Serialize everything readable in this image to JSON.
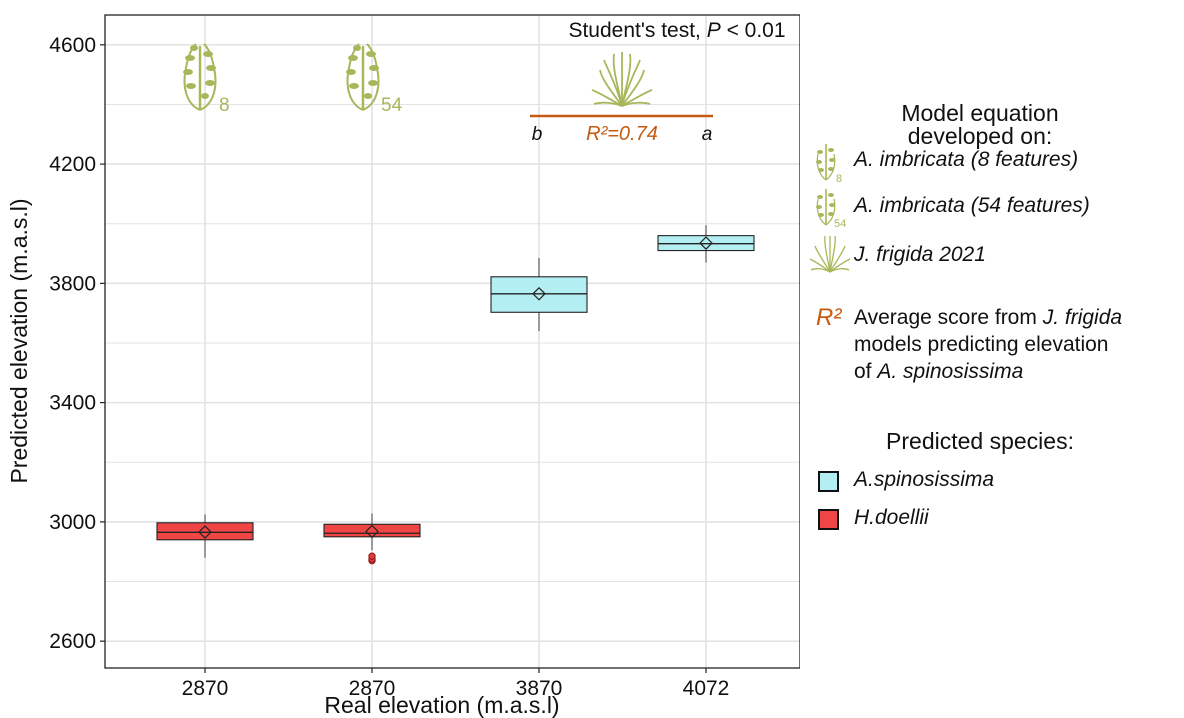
{
  "chart_data": {
    "type": "boxplot",
    "title": "",
    "annotation": {
      "test_prefix": "Student's test, ",
      "test_p": "P",
      "test_suffix": " < 0.01",
      "r2_label": "R²=0.74",
      "letter_left": "b",
      "letter_right": "a",
      "icon_label_1": "8",
      "icon_label_2": "54"
    },
    "xlabel": "Real elevation (m.a.s.l)",
    "ylabel": "Predicted elevation (m.a.s.l)",
    "categories": [
      "2870",
      "2870",
      "3870",
      "4072"
    ],
    "yticks": [
      2600,
      3000,
      3400,
      3800,
      4200,
      4600
    ],
    "ylim": [
      2510,
      4700
    ],
    "grid": true,
    "boxes": [
      {
        "species": "H.doellii",
        "min": 2880,
        "q1": 2940,
        "median": 2965,
        "q3": 2997,
        "max": 3025,
        "mean": 2966,
        "outliers": []
      },
      {
        "species": "H.doellii",
        "min": 2905,
        "q1": 2950,
        "median": 2962,
        "q3": 2992,
        "max": 3028,
        "mean": 2968,
        "outliers": [
          2870,
          2875,
          2885
        ]
      },
      {
        "species": "A.spinosissima",
        "min": 3640,
        "q1": 3703,
        "median": 3765,
        "q3": 3822,
        "max": 3885,
        "mean": 3765,
        "outliers": []
      },
      {
        "species": "A.spinosissima",
        "min": 3870,
        "q1": 3910,
        "median": 3933,
        "q3": 3960,
        "max": 3995,
        "mean": 3935,
        "outliers": []
      }
    ]
  },
  "legend": {
    "title1_line1": "Model equation",
    "title1_line2": "developed on:",
    "items": [
      {
        "label": "A. imbricata (8 features)",
        "icon_sub": "8"
      },
      {
        "label": "A. imbricata (54 features)",
        "icon_sub": "54"
      },
      {
        "label": "J. frigida 2021",
        "icon_sub": ""
      }
    ],
    "r2_symbol": "R²",
    "r2_text_a": "Average score from ",
    "r2_text_b": "J. frigida",
    "r2_line2": "models predicting elevation",
    "r2_line3_a": "of ",
    "r2_line3_b": "A. spinosissima",
    "title2": "Predicted species:",
    "species": [
      {
        "name": "A.spinosissima",
        "color": "#b3eef2"
      },
      {
        "name": "H.doellii",
        "color": "#f04545"
      }
    ]
  },
  "colors": {
    "plant": "#a6b85a",
    "r2": "#c55a11",
    "grid": "#e3e3e3"
  }
}
